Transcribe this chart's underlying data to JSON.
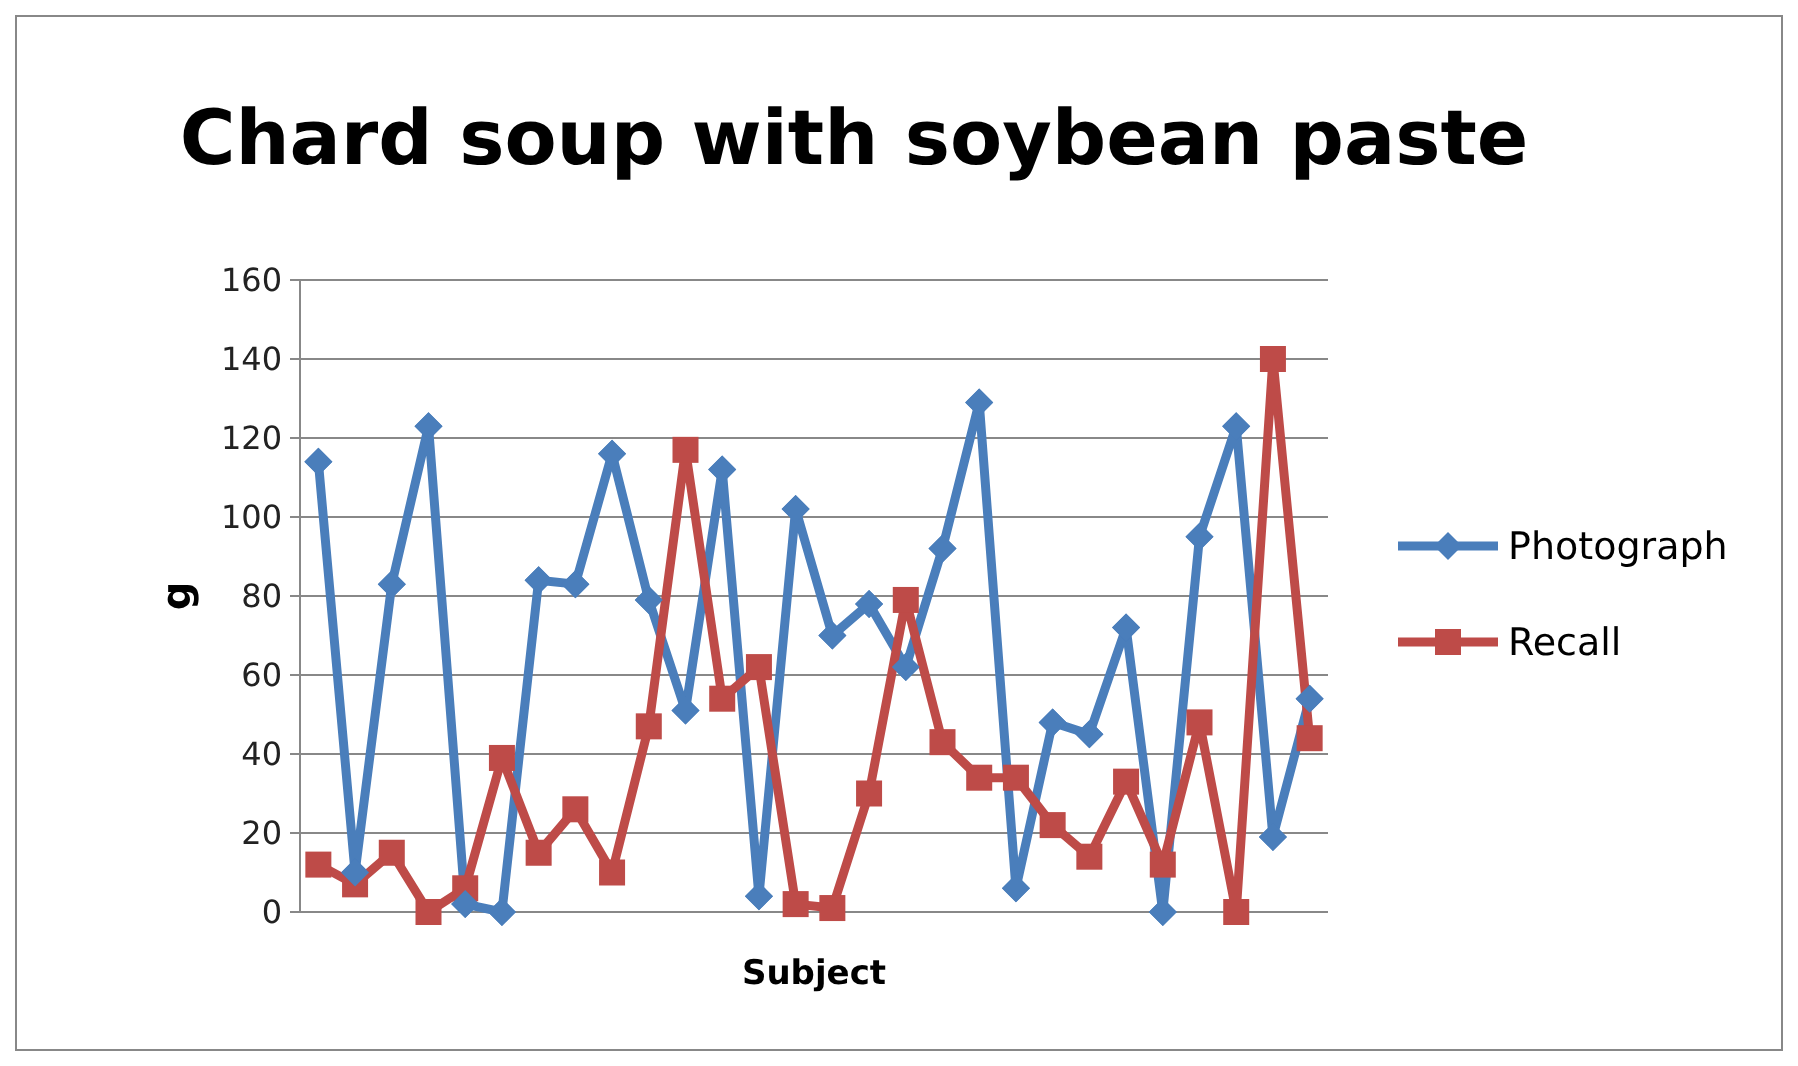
{
  "chart_data": {
    "type": "line",
    "title": "Chard soup with soybean paste",
    "xlabel": "Subject",
    "ylabel": "g",
    "categories": [
      null,
      null,
      null,
      null,
      null,
      null,
      null,
      null,
      null,
      null,
      null,
      null,
      null,
      null,
      null,
      null,
      null,
      null,
      null,
      null,
      null,
      null,
      null,
      null,
      null,
      null,
      null,
      null
    ],
    "series": [
      {
        "name": "Photograph",
        "color": "#4a7ebb",
        "marker": "diamond",
        "values": [
          114,
          10,
          83,
          123,
          2,
          0,
          84,
          83,
          116,
          79,
          51,
          112,
          4,
          102,
          70,
          78,
          62,
          92,
          129,
          6,
          48,
          45,
          72,
          0,
          95,
          123,
          19,
          54
        ]
      },
      {
        "name": "Recall",
        "color": "#be4b48",
        "marker": "square",
        "values": [
          12,
          7,
          15,
          0,
          6,
          39,
          15,
          26,
          10,
          47,
          117,
          54,
          62,
          2,
          1,
          30,
          79,
          43,
          34,
          34,
          22,
          14,
          33,
          12,
          48,
          0,
          140,
          44
        ]
      }
    ],
    "ylim": [
      0,
      160
    ],
    "yticks": [
      0,
      20,
      40,
      60,
      80,
      100,
      120,
      140,
      160
    ],
    "grid": "y",
    "legend": "right",
    "tick_labels": "y"
  }
}
